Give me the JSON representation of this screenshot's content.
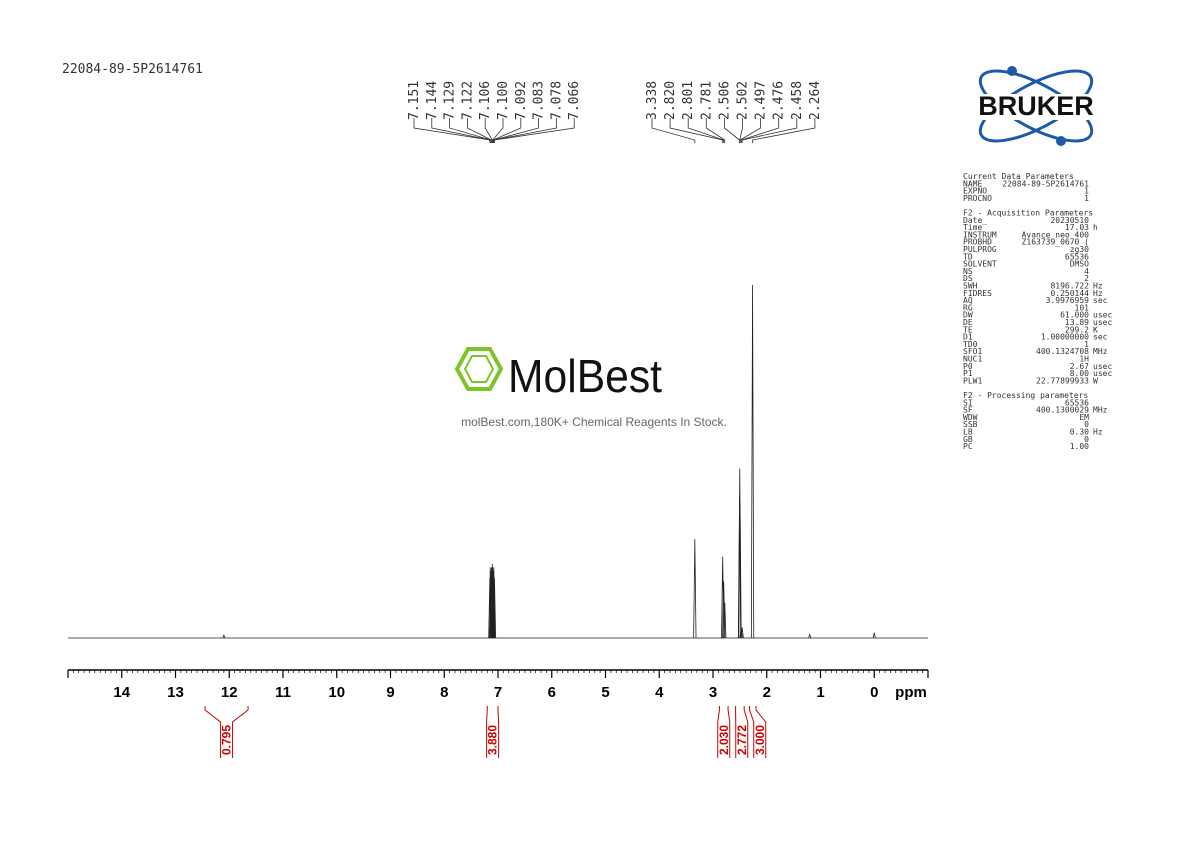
{
  "sample_id": "22084-89-5P2614761",
  "brand": "BRUKER",
  "watermark": {
    "name": "MolBest",
    "tagline": "molBest.com,180K+ Chemical Reagents In Stock."
  },
  "chart_data": {
    "type": "nmr",
    "x_label": "ppm",
    "xlim": [
      15,
      -1
    ],
    "xticks": [
      14,
      13,
      12,
      11,
      10,
      9,
      8,
      7,
      6,
      5,
      4,
      3,
      2,
      1,
      0
    ],
    "ylim": [
      0,
      100
    ],
    "peaks": {
      "x": [
        12.1,
        7.151,
        7.144,
        7.129,
        7.122,
        7.106,
        7.1,
        7.092,
        7.083,
        7.078,
        7.066,
        3.338,
        2.82,
        2.801,
        2.781,
        2.506,
        2.502,
        2.497,
        2.476,
        2.458,
        2.264,
        1.2,
        0
      ],
      "values": [
        0.8,
        17,
        20,
        19,
        20,
        21,
        20,
        19,
        19,
        20,
        17,
        28,
        23,
        16,
        10,
        40,
        48,
        38,
        3,
        3,
        100,
        1,
        1.5
      ]
    },
    "peak_label_groups": [
      [
        7.151,
        7.144,
        7.129,
        7.122,
        7.106,
        {
          "value": 7.1,
          "label": "7.100"
        },
        7.092,
        7.083,
        7.078,
        7.066
      ],
      [
        3.338,
        {
          "value": 2.82,
          "label": "2.820"
        },
        2.801,
        2.781,
        2.506,
        2.502,
        2.497,
        2.476,
        2.458,
        2.264
      ]
    ],
    "integrals": [
      {
        "from": 12.45,
        "to": 11.65,
        "value": 0.795
      },
      {
        "from": 7.2,
        "to": 7.0,
        "value": {
          "value": 3.88,
          "label": "3.880"
        }
      },
      {
        "from": 2.88,
        "to": 2.72,
        "value": {
          "value": 2.03,
          "label": "2.030"
        }
      },
      {
        "from": 2.58,
        "to": 2.42,
        "value": 2.772
      },
      {
        "from": 2.32,
        "to": 2.2,
        "value": {
          "value": 3,
          "label": "3.000"
        }
      }
    ]
  },
  "parameters": [
    {
      "title": "Current Data Parameters",
      "rows": [
        [
          "NAME",
          "22084-89-5P2614761"
        ],
        [
          "EXPNO",
          "1"
        ],
        [
          "PROCNO",
          "1"
        ]
      ]
    },
    {
      "title": "F2 - Acquisition Parameters",
      "rows": [
        [
          "Date_",
          "20230510"
        ],
        [
          "Time",
          "17.03",
          "h"
        ],
        [
          "INSTRUM",
          "Avance neo 400"
        ],
        [
          "PROBHD",
          "Z163739_0670 ("
        ],
        [
          "PULPROG",
          "zg30"
        ],
        [
          "TD",
          "65536"
        ],
        [
          "SOLVENT",
          "DMSO"
        ],
        [
          "NS",
          "4"
        ],
        [
          "DS",
          "2"
        ],
        [
          "SWH",
          "8196.722",
          "Hz"
        ],
        [
          "FIDRES",
          "0.250144",
          "Hz"
        ],
        [
          "AQ",
          "3.9976959",
          "sec"
        ],
        [
          "RG",
          "101"
        ],
        [
          "DW",
          "61.000",
          "usec"
        ],
        [
          "DE",
          "13.89",
          "usec"
        ],
        [
          "TE",
          "299.2",
          "K"
        ],
        [
          "D1",
          "1.00000000",
          "sec"
        ],
        [
          "TD0",
          "1"
        ],
        [
          "SFO1",
          "400.1324708",
          "MHz"
        ],
        [
          "NUC1",
          "1H"
        ],
        [
          "P0",
          "2.67",
          "usec"
        ],
        [
          "P1",
          "8.00",
          "usec"
        ],
        [
          "PLW1",
          "22.77899933",
          "W"
        ]
      ]
    },
    {
      "title": "F2 - Processing parameters",
      "rows": [
        [
          "SI",
          "65536"
        ],
        [
          "SF",
          "400.1300029",
          "MHz"
        ],
        [
          "WDW",
          "EM"
        ],
        [
          "SSB",
          "0"
        ],
        [
          "LB",
          "0.30",
          "Hz"
        ],
        [
          "GB",
          "0"
        ],
        [
          "PC",
          "1.00"
        ]
      ]
    }
  ]
}
